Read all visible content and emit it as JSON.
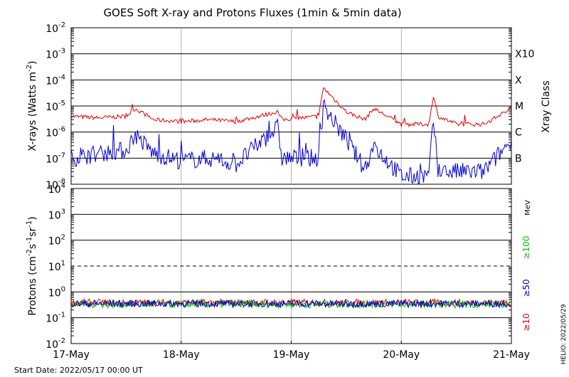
{
  "chart_data": [
    {
      "type": "line",
      "title": "GOES Soft X-ray and Protons Fluxes   (1min & 5min data)",
      "ylabel_parts": [
        "X-rays (Watts m",
        "-2",
        ")"
      ],
      "yscale": "log",
      "ylim": [
        1e-08,
        0.01
      ],
      "yticks": [
        {
          "base": "10",
          "exp": "-2",
          "value": 0.01
        },
        {
          "base": "10",
          "exp": "-3",
          "value": 0.001
        },
        {
          "base": "10",
          "exp": "-4",
          "value": 0.0001
        },
        {
          "base": "10",
          "exp": "-5",
          "value": 1e-05
        },
        {
          "base": "10",
          "exp": "-6",
          "value": 1e-06
        },
        {
          "base": "10",
          "exp": "-7",
          "value": 1e-07
        },
        {
          "base": "10",
          "exp": "-8",
          "value": 1e-08
        }
      ],
      "xrange_days": [
        "2022-05-17",
        "2022-05-21"
      ],
      "right_axis_label": "Xray Class",
      "xray_classes": [
        {
          "label": "X10",
          "value": 0.001
        },
        {
          "label": "X",
          "value": 0.0001
        },
        {
          "label": "M",
          "value": 1e-05
        },
        {
          "label": "C",
          "value": 1e-06
        },
        {
          "label": "B",
          "value": 1e-07
        }
      ],
      "series": [
        {
          "color": "#e00000",
          "x": [
            "2022-05-17 00:00",
            "2022-05-17 06:00",
            "2022-05-17 12:00",
            "2022-05-17 14:00",
            "2022-05-17 18:00",
            "2022-05-18 00:00",
            "2022-05-18 06:00",
            "2022-05-18 12:00",
            "2022-05-18 21:00",
            "2022-05-18 22:00",
            "2022-05-19 06:00",
            "2022-05-19 07:00",
            "2022-05-19 12:00",
            "2022-05-19 16:00",
            "2022-05-19 18:00",
            "2022-05-20 00:00",
            "2022-05-20 06:00",
            "2022-05-20 07:00",
            "2022-05-20 08:00",
            "2022-05-20 12:00",
            "2022-05-20 18:00",
            "2022-05-21 00:00"
          ],
          "values": [
            4e-06,
            3.5e-06,
            4e-06,
            8e-06,
            3e-06,
            2.5e-06,
            3e-06,
            2.5e-06,
            6e-06,
            3e-06,
            4e-06,
            5e-05,
            6e-06,
            3e-06,
            8e-06,
            2e-06,
            2e-06,
            2.5e-05,
            4e-06,
            2e-06,
            2e-06,
            8e-06
          ]
        },
        {
          "color": "#0000cc",
          "x": [
            "2022-05-17 00:00",
            "2022-05-17 06:00",
            "2022-05-17 12:00",
            "2022-05-17 14:00",
            "2022-05-17 18:00",
            "2022-05-18 00:00",
            "2022-05-18 06:00",
            "2022-05-18 12:00",
            "2022-05-18 21:00",
            "2022-05-18 22:00",
            "2022-05-19 06:00",
            "2022-05-19 07:00",
            "2022-05-19 12:00",
            "2022-05-19 16:00",
            "2022-05-19 18:00",
            "2022-05-20 00:00",
            "2022-05-20 06:00",
            "2022-05-20 07:00",
            "2022-05-20 08:00",
            "2022-05-20 12:00",
            "2022-05-20 18:00",
            "2022-05-21 00:00"
          ],
          "values": [
            1e-07,
            1.5e-07,
            2e-07,
            8e-07,
            1.5e-07,
            8e-08,
            1e-07,
            6e-08,
            1.5e-06,
            1e-07,
            1e-07,
            1e-05,
            5e-07,
            4e-08,
            3e-07,
            2e-08,
            2e-08,
            3e-06,
            3e-08,
            3e-08,
            3e-08,
            5e-07
          ]
        }
      ]
    },
    {
      "type": "line",
      "ylabel_parts": [
        "Protons (cm",
        "-2",
        "s",
        "-1",
        "sr",
        "-1",
        ")"
      ],
      "yscale": "log",
      "ylim": [
        0.01,
        10000
      ],
      "yticks": [
        {
          "base": "10",
          "exp": "4",
          "value": 10000
        },
        {
          "base": "10",
          "exp": "3",
          "value": 1000
        },
        {
          "base": "10",
          "exp": "2",
          "value": 100
        },
        {
          "base": "10",
          "exp": "1",
          "value": 10
        },
        {
          "base": "10",
          "exp": "0",
          "value": 1
        },
        {
          "base": "10",
          "exp": "-1",
          "value": 0.1
        },
        {
          "base": "10",
          "exp": "-2",
          "value": 0.01
        }
      ],
      "threshold_dashed": 10,
      "xrange_days": [
        "2022-05-17",
        "2022-05-21"
      ],
      "xtick_labels": [
        "17-May",
        "18-May",
        "19-May",
        "20-May",
        "21-May"
      ],
      "energy_unit": "MeV",
      "energy_labels": [
        {
          "label": "≥100",
          "color": "#00c000"
        },
        {
          "label": "≥50",
          "color": "#0000cc"
        },
        {
          "label": "≥10",
          "color": "#e00000"
        }
      ],
      "series": [
        {
          "color": "#e00000",
          "level": 0.38
        },
        {
          "color": "#00c000",
          "level": 0.33
        },
        {
          "color": "#0000cc",
          "level": 0.35
        }
      ]
    }
  ],
  "footer": {
    "start_date": "Start Date: 2022/05/17 00:00 UT",
    "credit": "HELIO: 2022/05/29"
  }
}
